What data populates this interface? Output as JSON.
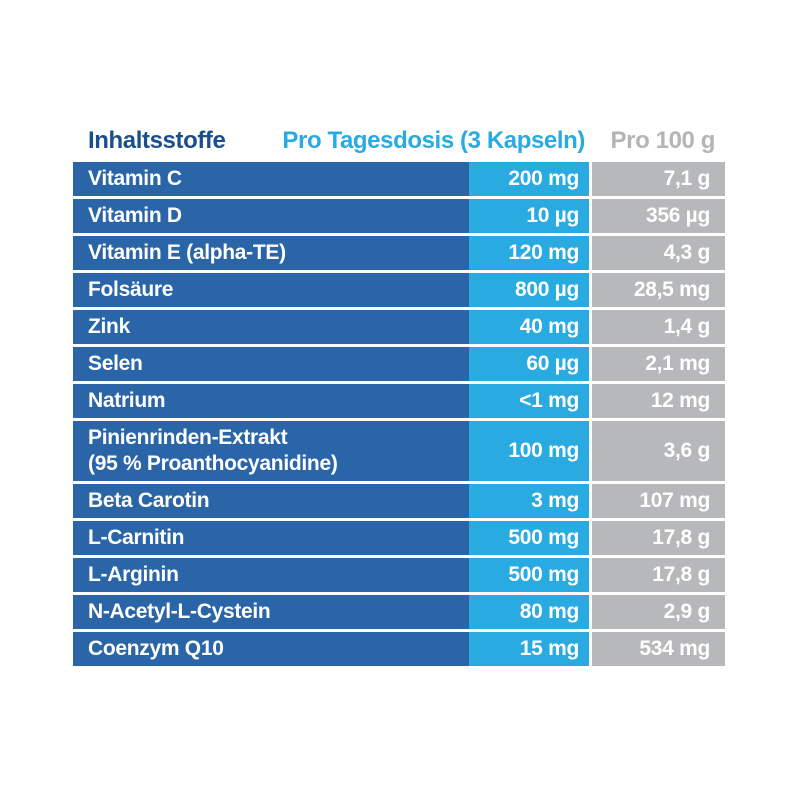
{
  "table": {
    "headers": {
      "name": "Inhaltsstoffe",
      "dose": "Pro Tagesdosis (3 Kapseln)",
      "per100": "Pro 100 g"
    },
    "rows": [
      {
        "name": "Vitamin C",
        "dose": "200 mg",
        "per100": "7,1 g"
      },
      {
        "name": "Vitamin D",
        "dose": "10 µg",
        "per100": "356 µg"
      },
      {
        "name": "Vitamin E (alpha-TE)",
        "dose": "120 mg",
        "per100": "4,3 g"
      },
      {
        "name": "Folsäure",
        "dose": "800 µg",
        "per100": "28,5 mg"
      },
      {
        "name": "Zink",
        "dose": "40 mg",
        "per100": "1,4 g"
      },
      {
        "name": "Selen",
        "dose": "60 µg",
        "per100": "2,1 mg"
      },
      {
        "name": "Natrium",
        "dose": "<1 mg",
        "per100": "12 mg"
      },
      {
        "name": "Pinienrinden-Extrakt",
        "name2": "(95 % Proanthocyanidine)",
        "dose": "100 mg",
        "per100": "3,6 g"
      },
      {
        "name": "Beta Carotin",
        "dose": "3 mg",
        "per100": "107 mg"
      },
      {
        "name": "L-Carnitin",
        "dose": "500 mg",
        "per100": "17,8 g"
      },
      {
        "name": "L-Arginin",
        "dose": "500 mg",
        "per100": "17,8 g"
      },
      {
        "name": "N-Acetyl-L-Cystein",
        "dose": "80 mg",
        "per100": "2,9 g"
      },
      {
        "name": "Coenzym Q10",
        "dose": "15 mg",
        "per100": "534 mg"
      }
    ],
    "colors": {
      "row_name_bg": "#2a65a8",
      "row_dose_bg": "#29abe2",
      "row_per100_bg": "#b7b8ba",
      "header_name_text": "#1a4e8f",
      "header_dose_text": "#29abe2",
      "header_per100_text": "#b3b5b7",
      "row_text": "#ffffff",
      "background": "#ffffff"
    }
  }
}
